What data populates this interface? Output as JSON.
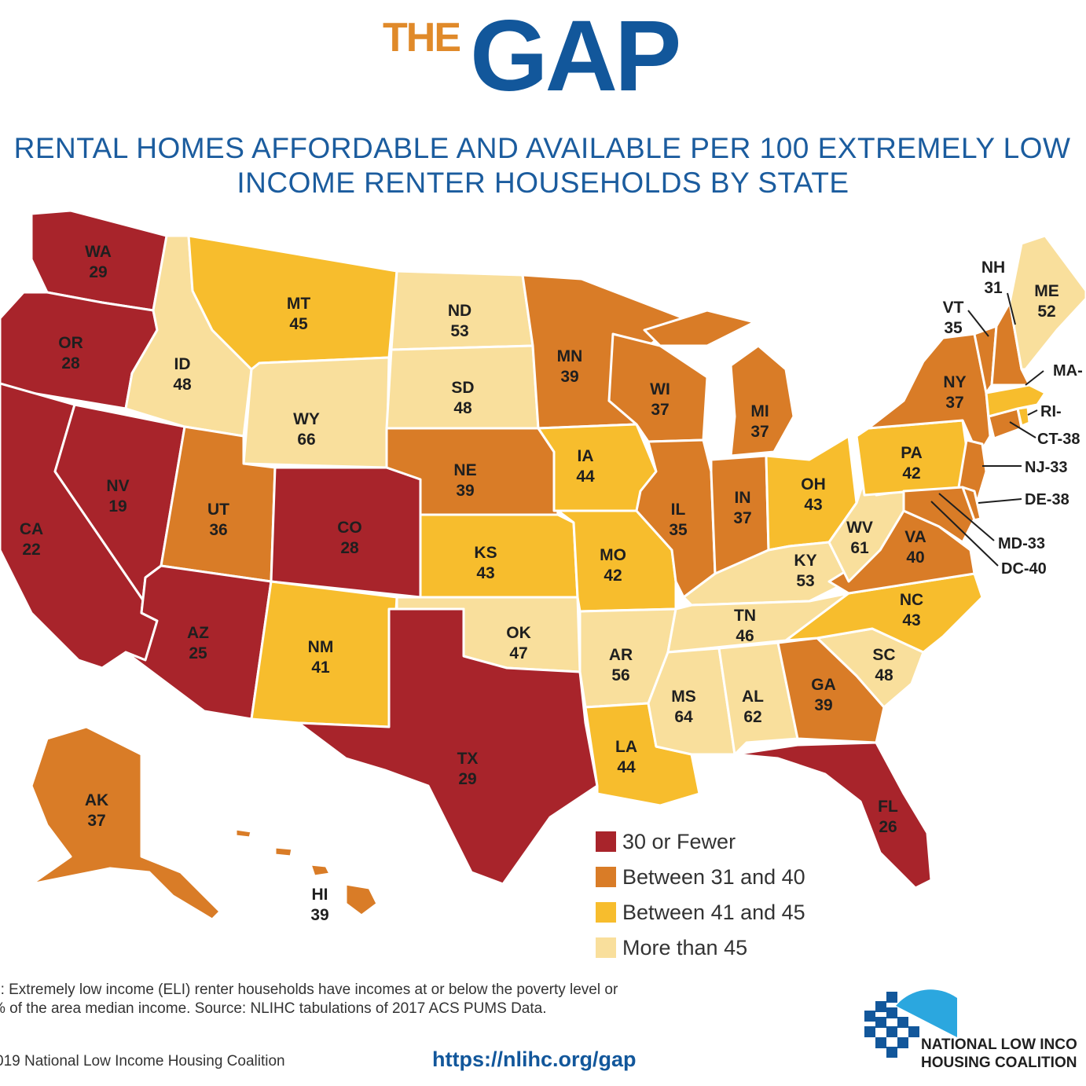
{
  "header": {
    "title_the": "THE",
    "title_gap": "GAP",
    "subtitle_line1": "RENTAL HOMES AFFORDABLE AND AVAILABLE PER 100 EXTREMELY LOW",
    "subtitle_line2": "INCOME RENTER HOUSEHOLDS BY STATE"
  },
  "colors": {
    "c30": "#a8242b",
    "c31": "#d97c27",
    "c41": "#f7bd2d",
    "c45": "#f9df9c",
    "title_blue": "#12579b",
    "title_orange": "#e08a2a"
  },
  "legend": [
    {
      "label": "30 or Fewer",
      "color": "#a8242b"
    },
    {
      "label": "Between 31 and 40",
      "color": "#d97c27"
    },
    {
      "label": "Between 41 and 45",
      "color": "#f7bd2d"
    },
    {
      "label": "More than 45",
      "color": "#f9df9c"
    }
  ],
  "states": [
    {
      "abbr": "WA",
      "value": "29"
    },
    {
      "abbr": "OR",
      "value": "28"
    },
    {
      "abbr": "CA",
      "value": "22"
    },
    {
      "abbr": "NV",
      "value": "19"
    },
    {
      "abbr": "ID",
      "value": "48"
    },
    {
      "abbr": "MT",
      "value": "45"
    },
    {
      "abbr": "WY",
      "value": "66"
    },
    {
      "abbr": "UT",
      "value": "36"
    },
    {
      "abbr": "AZ",
      "value": "25"
    },
    {
      "abbr": "CO",
      "value": "28"
    },
    {
      "abbr": "NM",
      "value": "41"
    },
    {
      "abbr": "ND",
      "value": "53"
    },
    {
      "abbr": "SD",
      "value": "48"
    },
    {
      "abbr": "NE",
      "value": "39"
    },
    {
      "abbr": "KS",
      "value": "43"
    },
    {
      "abbr": "OK",
      "value": "47"
    },
    {
      "abbr": "TX",
      "value": "29"
    },
    {
      "abbr": "MN",
      "value": "39"
    },
    {
      "abbr": "IA",
      "value": "44"
    },
    {
      "abbr": "MO",
      "value": "42"
    },
    {
      "abbr": "AR",
      "value": "56"
    },
    {
      "abbr": "LA",
      "value": "44"
    },
    {
      "abbr": "WI",
      "value": "37"
    },
    {
      "abbr": "IL",
      "value": "35"
    },
    {
      "abbr": "MI",
      "value": "37"
    },
    {
      "abbr": "IN",
      "value": "37"
    },
    {
      "abbr": "OH",
      "value": "43"
    },
    {
      "abbr": "KY",
      "value": "53"
    },
    {
      "abbr": "TN",
      "value": "46"
    },
    {
      "abbr": "MS",
      "value": "64"
    },
    {
      "abbr": "AL",
      "value": "62"
    },
    {
      "abbr": "GA",
      "value": "39"
    },
    {
      "abbr": "FL",
      "value": "26"
    },
    {
      "abbr": "SC",
      "value": "48"
    },
    {
      "abbr": "NC",
      "value": "43"
    },
    {
      "abbr": "VA",
      "value": "40"
    },
    {
      "abbr": "WV",
      "value": "61"
    },
    {
      "abbr": "PA",
      "value": "42"
    },
    {
      "abbr": "NY",
      "value": "37"
    },
    {
      "abbr": "VT",
      "value": "35"
    },
    {
      "abbr": "NH",
      "value": "31"
    },
    {
      "abbr": "ME",
      "value": "52"
    },
    {
      "abbr": "AK",
      "value": "37"
    },
    {
      "abbr": "HI",
      "value": "39"
    }
  ],
  "callouts": [
    {
      "label": "MA-"
    },
    {
      "label": "RI-"
    },
    {
      "label": "CT-38"
    },
    {
      "label": "NJ-33"
    },
    {
      "label": "DE-38"
    },
    {
      "label": "MD-33"
    },
    {
      "label": "DC-40"
    }
  ],
  "footer": {
    "note": "e: Extremely low income (ELI) renter households have incomes at or below the poverty level or\n% of the area median income. Source: NLIHC tabulations of 2017 ACS PUMS Data.",
    "copyright": "019 National Low Income Housing Coalition",
    "url": "https://nlihc.org/gap",
    "org": "NATIONAL LOW INCO\nHOUSING COALITION"
  }
}
